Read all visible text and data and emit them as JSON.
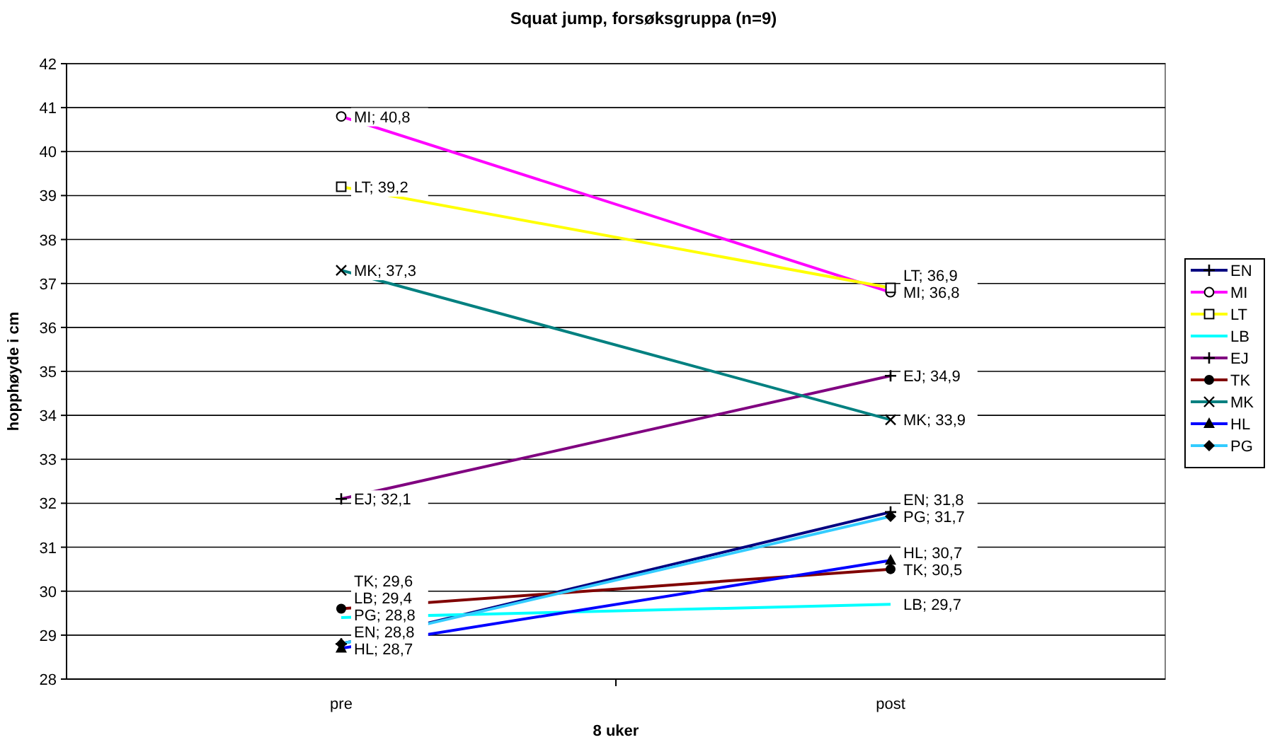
{
  "chart_data": {
    "type": "line",
    "title": "Squat jump, forsøksgruppa (n=9)",
    "xlabel": "8 uker",
    "ylabel": "hopphøyde i cm",
    "categories": [
      "pre",
      "post"
    ],
    "ylim": [
      28,
      42
    ],
    "yticks": [
      28,
      29,
      30,
      31,
      32,
      33,
      34,
      35,
      36,
      37,
      38,
      39,
      40,
      41,
      42
    ],
    "grid": "y",
    "legend": "right",
    "series": [
      {
        "name": "EN",
        "color": "#000080",
        "marker": "cross",
        "values": [
          28.8,
          31.8
        ],
        "value_labels": [
          "EN; 28,8",
          "EN; 31,8"
        ]
      },
      {
        "name": "MI",
        "color": "#ff00ff",
        "marker": "circle",
        "values": [
          40.8,
          36.8
        ],
        "value_labels": [
          "MI; 40,8",
          "MI; 36,8"
        ]
      },
      {
        "name": "LT",
        "color": "#ffff00",
        "marker": "square",
        "values": [
          39.2,
          36.9
        ],
        "value_labels": [
          "LT; 39,2",
          "LT; 36,9"
        ]
      },
      {
        "name": "LB",
        "color": "#00ffff",
        "marker": "none",
        "values": [
          29.4,
          29.7
        ],
        "value_labels": [
          "LB; 29,4",
          "LB; 29,7"
        ]
      },
      {
        "name": "EJ",
        "color": "#800080",
        "marker": "cross",
        "values": [
          32.1,
          34.9
        ],
        "value_labels": [
          "EJ; 32,1",
          "EJ; 34,9"
        ]
      },
      {
        "name": "TK",
        "color": "#800000",
        "marker": "circle-filled",
        "values": [
          29.6,
          30.5
        ],
        "value_labels": [
          "TK; 29,6",
          "TK; 30,5"
        ]
      },
      {
        "name": "MK",
        "color": "#008080",
        "marker": "x",
        "values": [
          37.3,
          33.9
        ],
        "value_labels": [
          "MK; 37,3",
          "MK; 33,9"
        ]
      },
      {
        "name": "HL",
        "color": "#0000ff",
        "marker": "triangle",
        "values": [
          28.7,
          30.7
        ],
        "value_labels": [
          "HL; 28,7",
          "HL; 30,7"
        ]
      },
      {
        "name": "PG",
        "color": "#33ccff",
        "marker": "diamond",
        "values": [
          28.8,
          31.7
        ],
        "value_labels": [
          "PG; 28,8",
          "PG; 31,7"
        ]
      }
    ]
  }
}
